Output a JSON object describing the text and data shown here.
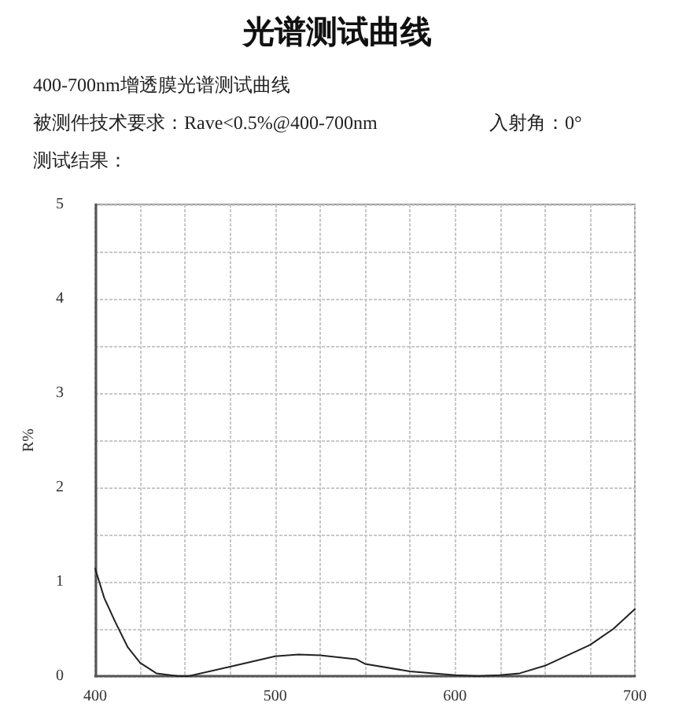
{
  "chart_data": {
    "type": "line",
    "title": "光谱测试曲线",
    "subtitle": "400-700nm增透膜光谱测试曲线",
    "annotations": [
      "被测件技术要求：Rave<0.5%@400-700nm",
      "入射角：0°",
      "测试结果："
    ],
    "ylabel": "R%",
    "x": [
      400,
      405,
      411,
      418,
      425,
      434,
      446,
      452,
      475,
      500,
      513,
      525,
      545,
      550,
      575,
      600,
      613,
      625,
      636,
      650,
      675,
      688,
      700
    ],
    "values": [
      1.14,
      0.83,
      0.58,
      0.31,
      0.14,
      0.03,
      0.0,
      0.0,
      0.1,
      0.21,
      0.23,
      0.22,
      0.18,
      0.13,
      0.05,
      0.01,
      0.0,
      0.01,
      0.03,
      0.11,
      0.33,
      0.5,
      0.71
    ],
    "color": "#222222",
    "xlim": [
      400,
      700
    ],
    "xticks": [
      400,
      {
        "value": 425,
        "label": null
      },
      {
        "value": 450,
        "label": null
      },
      {
        "value": 475,
        "label": null
      },
      500,
      {
        "value": 525,
        "label": null
      },
      {
        "value": 550,
        "label": null
      },
      {
        "value": 575,
        "label": null
      },
      600,
      {
        "value": 625,
        "label": null
      },
      {
        "value": 650,
        "label": null
      },
      {
        "value": 675,
        "label": null
      },
      700
    ],
    "ylim": [
      0,
      5
    ],
    "yticks": [
      0,
      {
        "value": 0.5,
        "label": null
      },
      1,
      {
        "value": 1.5,
        "label": null
      },
      2,
      {
        "value": 2.5,
        "label": null
      },
      3,
      {
        "value": 3.5,
        "label": null
      },
      4,
      {
        "value": 4.5,
        "label": null
      },
      5
    ],
    "grid": true,
    "marker": "none",
    "line_style": "solid"
  }
}
